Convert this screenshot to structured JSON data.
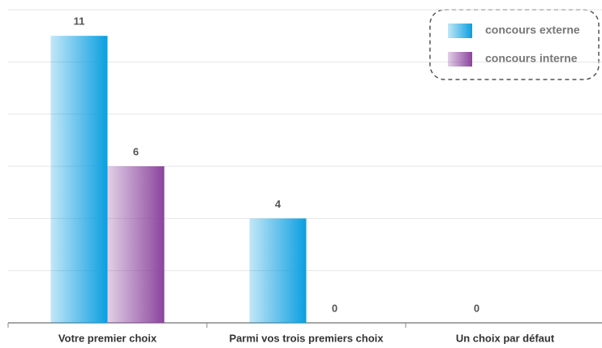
{
  "chart_data": {
    "type": "bar",
    "categories": [
      "Votre premier choix",
      "Parmi vos trois premiers choix",
      "Un choix par défaut"
    ],
    "series": [
      {
        "name": "concours externe",
        "color": "#0a9fe0",
        "values": [
          11,
          4,
          0
        ]
      },
      {
        "name": "concours interne",
        "color": "#8b449e",
        "values": [
          6,
          0,
          null
        ]
      }
    ],
    "ylim": [
      0,
      12
    ],
    "yticks": [
      0,
      2,
      4,
      6,
      8,
      10,
      12
    ],
    "grid": true,
    "legend": "top-right"
  }
}
